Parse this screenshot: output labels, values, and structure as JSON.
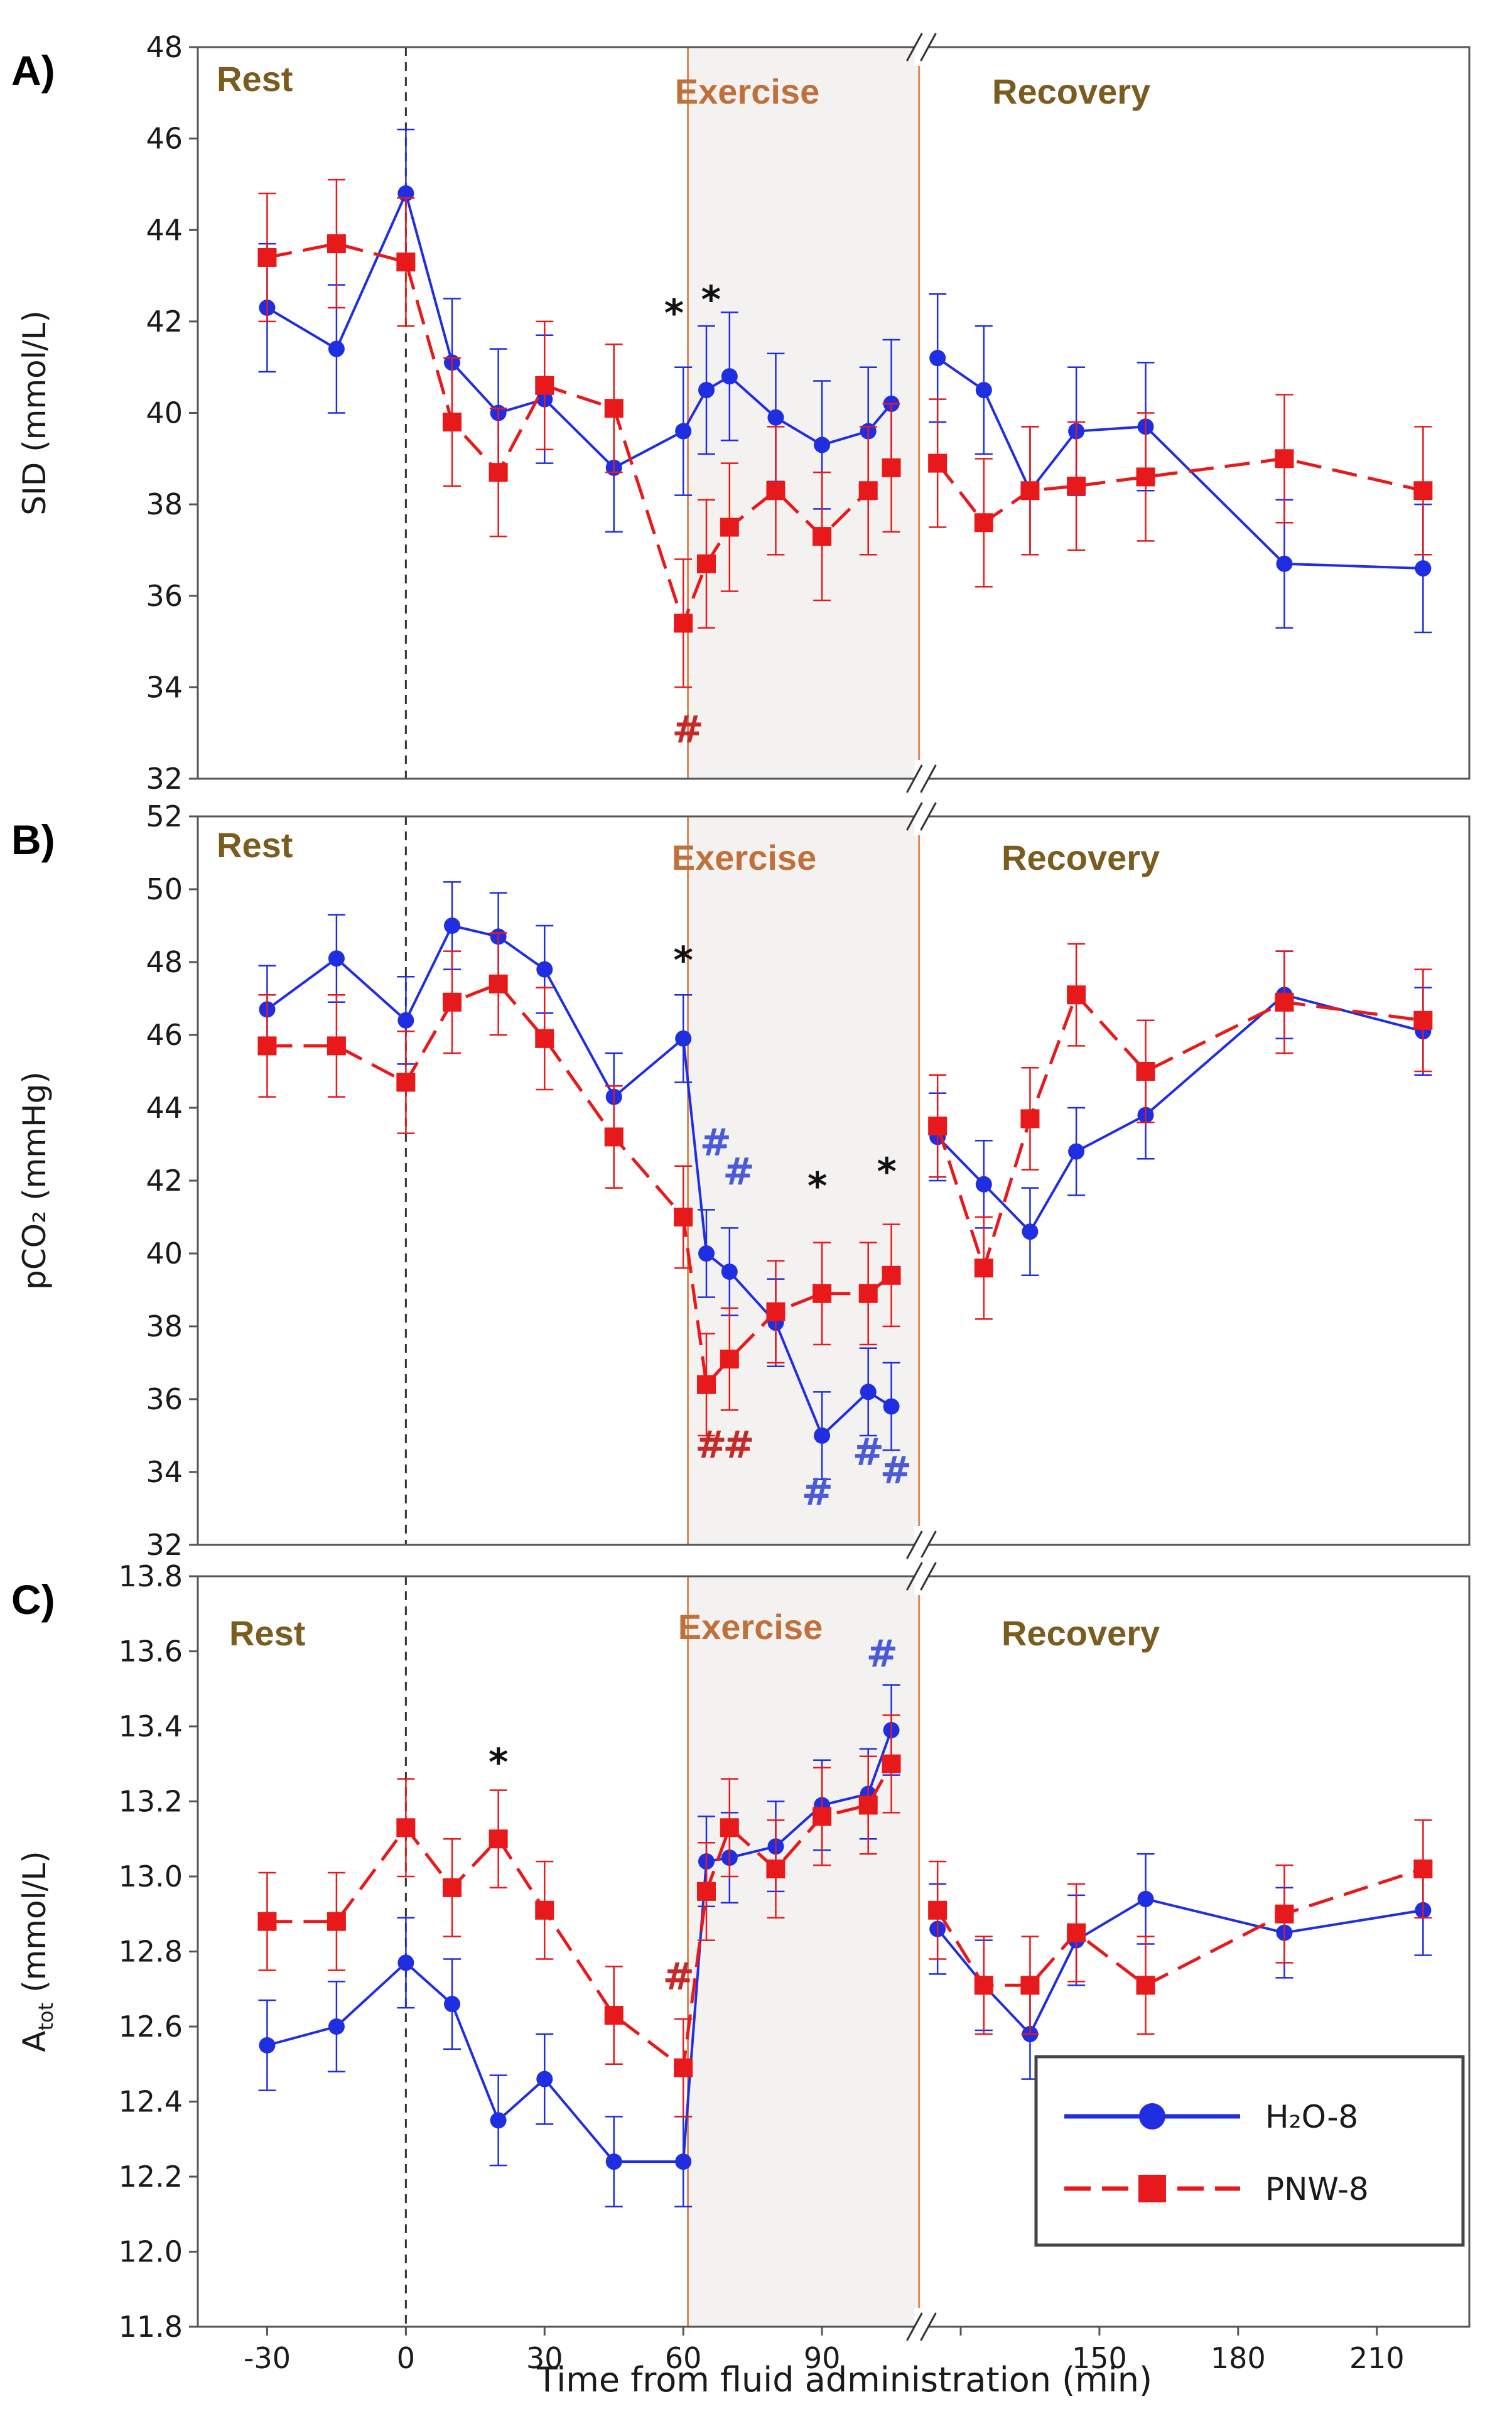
{
  "figure": {
    "xlabel": "Time from fluid administration (min)",
    "xticks": [
      -30,
      0,
      30,
      60,
      90,
      120,
      150,
      180,
      210
    ],
    "xtick_labels": [
      "-30",
      "0",
      "30",
      "60",
      "90",
      "",
      "150",
      "180",
      "210"
    ],
    "xlim": [
      -45,
      230
    ],
    "axis_break": {
      "range": [
        110,
        113
      ]
    },
    "exercise_shade": [
      61,
      111
    ],
    "colors": {
      "h2o": "#1f2ee0",
      "pnw": "#e8191b",
      "phase_label": "#7a5c1e",
      "exercise_label": "#c0703a",
      "shade": "#f4f2f0",
      "hash_h2o": "#4a5ad8",
      "hash_pnw": "#c42a2a",
      "star": "#111111"
    }
  },
  "legend": {
    "h2o_label": "H₂O-8",
    "pnw_label": "PNW-8"
  },
  "chart_data": [
    {
      "type": "line",
      "panel": "A)",
      "title": "",
      "ylabel": "SID (mmol/L)",
      "ylim": [
        32,
        48
      ],
      "yticks": [
        32,
        34,
        36,
        38,
        40,
        42,
        44,
        46,
        48
      ],
      "phase_labels": {
        "rest": "Rest",
        "exercise": "Exercise",
        "recovery": "Recovery"
      },
      "x": [
        -30,
        -15,
        0,
        10,
        20,
        30,
        45,
        60,
        65,
        70,
        80,
        90,
        100,
        105,
        115,
        125,
        135,
        145,
        160,
        190,
        220
      ],
      "series": [
        {
          "name": "H₂O-8",
          "values": [
            42.3,
            41.4,
            44.8,
            41.1,
            40.0,
            40.3,
            38.8,
            39.6,
            40.5,
            40.8,
            39.9,
            39.3,
            39.6,
            40.2,
            41.2,
            40.5,
            38.3,
            39.6,
            39.7,
            36.7,
            36.6
          ],
          "error": [
            1.4,
            1.4,
            1.4,
            1.4,
            1.4,
            1.4,
            1.4,
            1.4,
            1.4,
            1.4,
            1.4,
            1.4,
            1.4,
            1.4,
            1.4,
            1.4,
            1.4,
            1.4,
            1.4,
            1.4,
            1.4
          ]
        },
        {
          "name": "PNW-8",
          "values": [
            43.4,
            43.7,
            43.3,
            39.8,
            38.7,
            40.6,
            40.1,
            35.4,
            36.7,
            37.5,
            38.3,
            37.3,
            38.3,
            38.8,
            38.9,
            37.6,
            38.3,
            38.4,
            38.6,
            39.0,
            38.3
          ],
          "error": [
            1.4,
            1.4,
            1.4,
            1.4,
            1.4,
            1.4,
            1.4,
            1.4,
            1.4,
            1.4,
            1.4,
            1.4,
            1.4,
            1.4,
            1.4,
            1.4,
            1.4,
            1.4,
            1.4,
            1.4,
            1.4
          ]
        }
      ],
      "annotations": [
        {
          "text": "*",
          "x": 58,
          "y": 41.9,
          "color": "star"
        },
        {
          "text": "*",
          "x": 66,
          "y": 42.2,
          "color": "star"
        },
        {
          "text": "#",
          "x": 61,
          "y": 32.8,
          "color": "hash_pnw"
        }
      ]
    },
    {
      "type": "line",
      "panel": "B)",
      "title": "",
      "ylabel": "pCO₂ (mmHg)",
      "ylim": [
        32,
        52
      ],
      "yticks": [
        32,
        34,
        36,
        38,
        40,
        42,
        44,
        46,
        48,
        50,
        52
      ],
      "phase_labels": {
        "rest": "Rest",
        "exercise": "Exercise",
        "recovery": "Recovery"
      },
      "x": [
        -30,
        -15,
        0,
        10,
        20,
        30,
        45,
        60,
        65,
        70,
        80,
        90,
        100,
        105,
        115,
        125,
        135,
        145,
        160,
        190,
        220
      ],
      "series": [
        {
          "name": "H₂O-8",
          "values": [
            46.7,
            48.1,
            46.4,
            49.0,
            48.7,
            47.8,
            44.3,
            45.9,
            40.0,
            39.5,
            38.1,
            35.0,
            36.2,
            35.8,
            43.2,
            41.9,
            40.6,
            42.8,
            43.8,
            47.1,
            46.1
          ],
          "error": [
            1.2,
            1.2,
            1.2,
            1.2,
            1.2,
            1.2,
            1.2,
            1.2,
            1.2,
            1.2,
            1.2,
            1.2,
            1.2,
            1.2,
            1.2,
            1.2,
            1.2,
            1.2,
            1.2,
            1.2,
            1.2
          ]
        },
        {
          "name": "PNW-8",
          "values": [
            45.7,
            45.7,
            44.7,
            46.9,
            47.4,
            45.9,
            43.2,
            41.0,
            36.4,
            37.1,
            38.4,
            38.9,
            38.9,
            39.4,
            43.5,
            39.6,
            43.7,
            47.1,
            45.0,
            46.9,
            46.4
          ],
          "error": [
            1.4,
            1.4,
            1.4,
            1.4,
            1.4,
            1.4,
            1.4,
            1.4,
            1.4,
            1.4,
            1.4,
            1.4,
            1.4,
            1.4,
            1.4,
            1.4,
            1.4,
            1.4,
            1.4,
            1.4,
            1.4
          ]
        }
      ],
      "annotations": [
        {
          "text": "*",
          "x": 60,
          "y": 47.7,
          "color": "star"
        },
        {
          "text": "#",
          "x": 67,
          "y": 42.7,
          "color": "hash_h2o"
        },
        {
          "text": "#",
          "x": 72,
          "y": 41.9,
          "color": "hash_h2o"
        },
        {
          "text": "*",
          "x": 89,
          "y": 41.5,
          "color": "star"
        },
        {
          "text": "*",
          "x": 104,
          "y": 41.9,
          "color": "star"
        },
        {
          "text": "#",
          "x": 66,
          "y": 34.4,
          "color": "hash_pnw"
        },
        {
          "text": "#",
          "x": 72,
          "y": 34.4,
          "color": "hash_pnw"
        },
        {
          "text": "#",
          "x": 89,
          "y": 33.1,
          "color": "hash_h2o"
        },
        {
          "text": "#",
          "x": 100,
          "y": 34.2,
          "color": "hash_h2o"
        },
        {
          "text": "#",
          "x": 106,
          "y": 33.7,
          "color": "hash_h2o"
        }
      ]
    },
    {
      "type": "line",
      "panel": "C)",
      "title": "",
      "ylabel": "A",
      "ylabel_sub": "tot",
      "ylabel_unit": " (mmol/L)",
      "ylim": [
        11.8,
        13.8
      ],
      "yticks": [
        11.8,
        12.0,
        12.2,
        12.4,
        12.6,
        12.8,
        13.0,
        13.2,
        13.4,
        13.6,
        13.8
      ],
      "ytick_labels": [
        "11.8",
        "12.0",
        "12.2",
        "12.4",
        "12.6",
        "12.8",
        "13.0",
        "13.2",
        "13.4",
        "13.6",
        "13.8"
      ],
      "phase_labels": {
        "rest": "Rest",
        "exercise": "Exercise",
        "recovery": "Recovery"
      },
      "x": [
        -30,
        -15,
        0,
        10,
        20,
        30,
        45,
        60,
        65,
        70,
        80,
        90,
        100,
        105,
        115,
        125,
        135,
        145,
        160,
        190,
        220
      ],
      "series": [
        {
          "name": "H₂O-8",
          "values": [
            12.55,
            12.6,
            12.77,
            12.66,
            12.35,
            12.46,
            12.24,
            12.24,
            13.04,
            13.05,
            13.08,
            13.19,
            13.22,
            13.39,
            12.86,
            12.71,
            12.58,
            12.83,
            12.94,
            12.85,
            12.91
          ],
          "error": [
            0.12,
            0.12,
            0.12,
            0.12,
            0.12,
            0.12,
            0.12,
            0.12,
            0.12,
            0.12,
            0.12,
            0.12,
            0.12,
            0.12,
            0.12,
            0.12,
            0.12,
            0.12,
            0.12,
            0.12,
            0.12
          ]
        },
        {
          "name": "PNW-8",
          "values": [
            12.88,
            12.88,
            13.13,
            12.97,
            13.1,
            12.91,
            12.63,
            12.49,
            12.96,
            13.13,
            13.02,
            13.16,
            13.19,
            13.3,
            12.91,
            12.71,
            12.71,
            12.85,
            12.71,
            12.9,
            13.02
          ],
          "error": [
            0.13,
            0.13,
            0.13,
            0.13,
            0.13,
            0.13,
            0.13,
            0.13,
            0.13,
            0.13,
            0.13,
            0.13,
            0.13,
            0.13,
            0.13,
            0.13,
            0.13,
            0.13,
            0.13,
            0.13,
            0.13
          ]
        }
      ],
      "annotations": [
        {
          "text": "*",
          "x": 20,
          "y": 13.27,
          "color": "star"
        },
        {
          "text": "#",
          "x": 59,
          "y": 12.7,
          "color": "hash_pnw"
        },
        {
          "text": "#",
          "x": 103,
          "y": 13.56,
          "color": "hash_h2o"
        }
      ]
    }
  ]
}
